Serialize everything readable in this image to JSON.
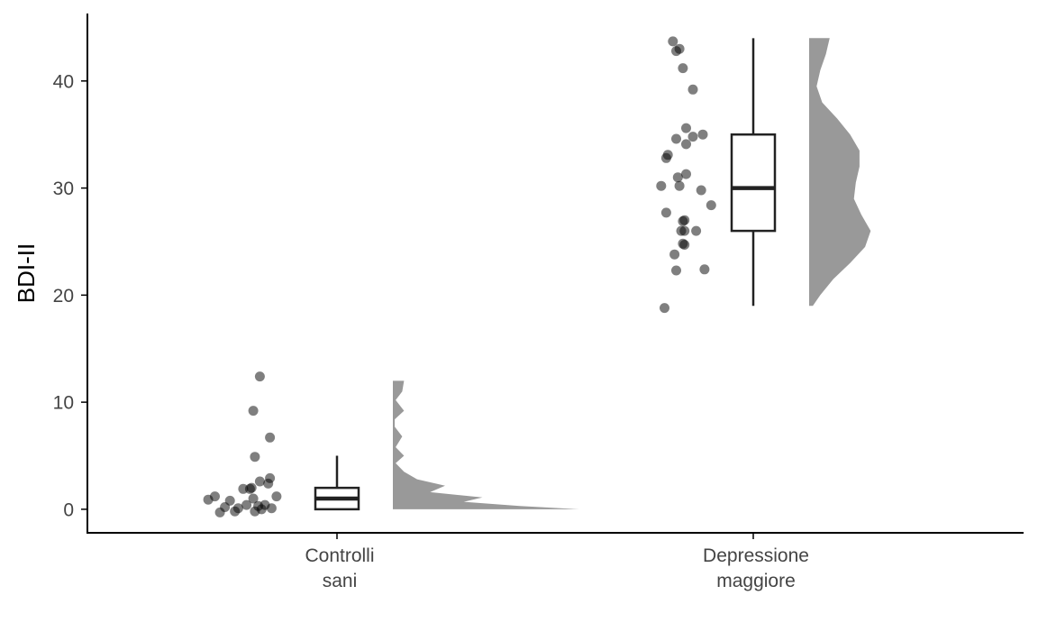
{
  "chart_data": {
    "type": "raincloud",
    "title": "",
    "xlabel": "",
    "ylabel": "BDI-II",
    "ylim": [
      -2.2,
      46.3
    ],
    "yticks": [
      0,
      10,
      20,
      30,
      40
    ],
    "grid": false,
    "legend": "none",
    "colors": {
      "points": "#000000",
      "box": "#222222",
      "density": "#999999"
    },
    "categories": [
      {
        "label_lines": [
          "Controlli",
          "sani"
        ]
      },
      {
        "label_lines": [
          "Depressione",
          "maggiore"
        ]
      }
    ],
    "groups": [
      {
        "box": {
          "min": 0,
          "q1": 0,
          "median": 1,
          "q3": 2,
          "max": 5
        },
        "points": [
          {
            "jitter": -0.34,
            "y": 0.9
          },
          {
            "jitter": -0.3,
            "y": 1.2
          },
          {
            "jitter": -0.27,
            "y": -0.3
          },
          {
            "jitter": -0.24,
            "y": 0.2
          },
          {
            "jitter": -0.21,
            "y": 0.8
          },
          {
            "jitter": -0.18,
            "y": -0.2
          },
          {
            "jitter": -0.16,
            "y": 0.1
          },
          {
            "jitter": -0.13,
            "y": 1.9
          },
          {
            "jitter": -0.11,
            "y": 0.4
          },
          {
            "jitter": -0.09,
            "y": 1.9
          },
          {
            "jitter": -0.08,
            "y": 2.0
          },
          {
            "jitter": -0.07,
            "y": 1.0
          },
          {
            "jitter": -0.06,
            "y": -0.2
          },
          {
            "jitter": -0.04,
            "y": 0.3
          },
          {
            "jitter": -0.03,
            "y": 2.6
          },
          {
            "jitter": -0.02,
            "y": 0.0
          },
          {
            "jitter": 0.0,
            "y": 0.4
          },
          {
            "jitter": 0.02,
            "y": 2.4
          },
          {
            "jitter": 0.03,
            "y": 2.9
          },
          {
            "jitter": 0.04,
            "y": 0.1
          },
          {
            "jitter": 0.07,
            "y": 1.2
          },
          {
            "jitter": -0.07,
            "y": 9.2
          },
          {
            "jitter": -0.06,
            "y": 4.9
          },
          {
            "jitter": 0.03,
            "y": 6.7
          },
          {
            "jitter": -0.03,
            "y": 12.4
          }
        ],
        "density": [
          {
            "y": 0.0,
            "d": 1.0
          },
          {
            "y": 0.3,
            "d": 0.68
          },
          {
            "y": 0.7,
            "d": 0.38
          },
          {
            "y": 1.1,
            "d": 0.48
          },
          {
            "y": 1.6,
            "d": 0.2
          },
          {
            "y": 2.2,
            "d": 0.28
          },
          {
            "y": 2.8,
            "d": 0.13
          },
          {
            "y": 3.5,
            "d": 0.06
          },
          {
            "y": 4.3,
            "d": 0.015
          },
          {
            "y": 5.0,
            "d": 0.06
          },
          {
            "y": 5.8,
            "d": 0.015
          },
          {
            "y": 6.8,
            "d": 0.05
          },
          {
            "y": 7.7,
            "d": 0.01
          },
          {
            "y": 8.4,
            "d": 0.01
          },
          {
            "y": 9.2,
            "d": 0.06
          },
          {
            "y": 10.2,
            "d": 0.015
          },
          {
            "y": 11.0,
            "d": 0.05
          },
          {
            "y": 12.0,
            "d": 0.06
          }
        ]
      },
      {
        "box": {
          "min": 19,
          "q1": 26,
          "median": 30,
          "q3": 35,
          "max": 44
        },
        "points": [
          {
            "jitter": -0.05,
            "y": 43.7
          },
          {
            "jitter": -0.03,
            "y": 42.8
          },
          {
            "jitter": -0.01,
            "y": 43.0
          },
          {
            "jitter": 0.01,
            "y": 41.2
          },
          {
            "jitter": 0.07,
            "y": 39.2
          },
          {
            "jitter": 0.03,
            "y": 35.6
          },
          {
            "jitter": 0.13,
            "y": 35.0
          },
          {
            "jitter": 0.07,
            "y": 34.8
          },
          {
            "jitter": -0.03,
            "y": 34.6
          },
          {
            "jitter": 0.03,
            "y": 34.1
          },
          {
            "jitter": -0.08,
            "y": 33.1
          },
          {
            "jitter": -0.09,
            "y": 32.8
          },
          {
            "jitter": 0.03,
            "y": 31.3
          },
          {
            "jitter": -0.02,
            "y": 31.0
          },
          {
            "jitter": -0.12,
            "y": 30.2
          },
          {
            "jitter": -0.01,
            "y": 30.2
          },
          {
            "jitter": 0.12,
            "y": 29.8
          },
          {
            "jitter": 0.18,
            "y": 28.4
          },
          {
            "jitter": -0.09,
            "y": 27.7
          },
          {
            "jitter": 0.02,
            "y": 27.0
          },
          {
            "jitter": 0.01,
            "y": 26.9
          },
          {
            "jitter": 0.0,
            "y": 26.0
          },
          {
            "jitter": 0.02,
            "y": 26.0
          },
          {
            "jitter": 0.09,
            "y": 26.0
          },
          {
            "jitter": 0.01,
            "y": 24.8
          },
          {
            "jitter": 0.02,
            "y": 24.7
          },
          {
            "jitter": -0.04,
            "y": 23.8
          },
          {
            "jitter": 0.14,
            "y": 22.4
          },
          {
            "jitter": -0.03,
            "y": 22.3
          },
          {
            "jitter": -0.1,
            "y": 18.8
          }
        ],
        "density": [
          {
            "y": 19.0,
            "d": 0.02
          },
          {
            "y": 20.0,
            "d": 0.06
          },
          {
            "y": 21.5,
            "d": 0.13
          },
          {
            "y": 23.0,
            "d": 0.22
          },
          {
            "y": 24.5,
            "d": 0.3
          },
          {
            "y": 26.0,
            "d": 0.33
          },
          {
            "y": 27.5,
            "d": 0.28
          },
          {
            "y": 29.0,
            "d": 0.24
          },
          {
            "y": 30.5,
            "d": 0.25
          },
          {
            "y": 32.0,
            "d": 0.27
          },
          {
            "y": 33.5,
            "d": 0.27
          },
          {
            "y": 35.0,
            "d": 0.22
          },
          {
            "y": 36.5,
            "d": 0.15
          },
          {
            "y": 38.0,
            "d": 0.07
          },
          {
            "y": 39.5,
            "d": 0.04
          },
          {
            "y": 41.0,
            "d": 0.06
          },
          {
            "y": 42.5,
            "d": 0.09
          },
          {
            "y": 44.0,
            "d": 0.11
          }
        ]
      }
    ]
  }
}
